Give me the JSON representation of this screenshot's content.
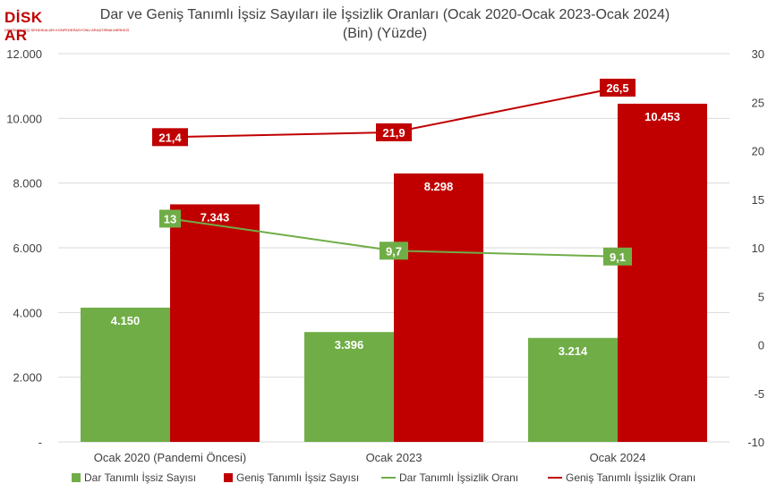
{
  "logo": {
    "text": "DİSK AR",
    "subtitle": "DEVRİMCİ İŞÇİ SENDİKALARI KONFEDERASYONU ARAŞTIRMA MERKEZİ"
  },
  "title_line1": "Dar ve Geniş Tanımlı İşsiz Sayıları ile İşsizlik Oranları (Ocak 2020-Ocak 2023-Ocak 2024)",
  "title_line2": "(Bin) (Yüzde)",
  "colors": {
    "green": "#70ad47",
    "red": "#c00000",
    "grid": "#d9d9d9",
    "text": "#404040"
  },
  "chart_data": {
    "type": "bar",
    "title": "Dar ve Geniş Tanımlı İşsiz Sayıları ile İşsizlik Oranları (Ocak 2020-Ocak 2023-Ocak 2024)",
    "subtitle": "(Bin) (Yüzde)",
    "categories": [
      "Ocak 2020 (Pandemi Öncesi)",
      "Ocak 2023",
      "Ocak 2024"
    ],
    "left_axis": {
      "ylim": [
        0,
        12000
      ],
      "ticks": [
        0,
        2000,
        4000,
        6000,
        8000,
        10000,
        12000
      ],
      "tick_labels": [
        "-",
        "2.000",
        "4.000",
        "6.000",
        "8.000",
        "10.000",
        "12.000"
      ]
    },
    "right_axis": {
      "ylim": [
        -10,
        30
      ],
      "ticks": [
        -10,
        -5,
        0,
        5,
        10,
        15,
        20,
        25,
        30
      ],
      "tick_labels": [
        "-10",
        "-5",
        "0",
        "5",
        "10",
        "15",
        "20",
        "25",
        "30"
      ]
    },
    "grid": true,
    "legend_position": "bottom",
    "series": [
      {
        "name": "Dar Tanımlı İşsiz Sayısı",
        "kind": "bar",
        "axis": "left",
        "color": "#70ad47",
        "values": [
          4150,
          3396,
          3214
        ],
        "labels": [
          "4.150",
          "3.396",
          "3.214"
        ]
      },
      {
        "name": "Geniş Tanımlı İşsiz Sayısı",
        "kind": "bar",
        "axis": "left",
        "color": "#c00000",
        "values": [
          7343,
          8298,
          10453
        ],
        "labels": [
          "7.343",
          "8.298",
          "10.453"
        ]
      },
      {
        "name": "Dar Tanımlı İşsizlik Oranı",
        "kind": "line",
        "axis": "right",
        "color": "#70ad47",
        "values": [
          13,
          9.7,
          9.1
        ],
        "labels": [
          "13",
          "9,7",
          "9,1"
        ]
      },
      {
        "name": "Geniş Tanımlı İşsizlik Oranı",
        "kind": "line",
        "axis": "right",
        "color": "#c00000",
        "values": [
          21.4,
          21.9,
          26.5
        ],
        "labels": [
          "21,4",
          "21,9",
          "26,5"
        ]
      }
    ]
  }
}
